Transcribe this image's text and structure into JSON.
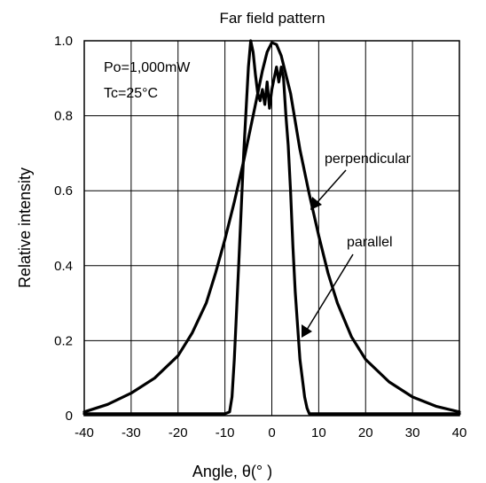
{
  "chart_data": {
    "type": "line",
    "title": "Far field pattern",
    "xlabel": "Angle, θ(°  )",
    "ylabel": "Relative intensity",
    "xlim": [
      -40,
      40
    ],
    "ylim": [
      0,
      1.0
    ],
    "xticks": [
      -40,
      -30,
      -20,
      -10,
      0,
      10,
      20,
      30,
      40
    ],
    "yticks": [
      0,
      0.2,
      0.4,
      0.6,
      0.8,
      1.0
    ],
    "ytick_labels": [
      "0",
      "0.2",
      "0.4",
      "0.6",
      "0.8",
      "1.0"
    ],
    "grid": true,
    "annotations": [
      "Po=1,000mW",
      "Tc=25°C"
    ],
    "series": [
      {
        "name": "perpendicular",
        "x": [
          -40,
          -35,
          -30,
          -25,
          -20,
          -17,
          -14,
          -12,
          -10,
          -8,
          -6,
          -4,
          -2,
          -1,
          0,
          1,
          2,
          4,
          6,
          8,
          10,
          12,
          14,
          17,
          20,
          25,
          30,
          35,
          40
        ],
        "y": [
          0.01,
          0.03,
          0.06,
          0.1,
          0.16,
          0.22,
          0.3,
          0.38,
          0.47,
          0.57,
          0.68,
          0.8,
          0.92,
          0.97,
          0.995,
          0.99,
          0.96,
          0.86,
          0.71,
          0.59,
          0.48,
          0.38,
          0.3,
          0.21,
          0.15,
          0.09,
          0.05,
          0.025,
          0.01
        ]
      },
      {
        "name": "parallel",
        "x": [
          -40,
          -20,
          -10,
          -9,
          -8.5,
          -8,
          -7,
          -6,
          -5,
          -4.5,
          -4,
          -3.5,
          -3,
          -2.5,
          -2,
          -1.5,
          -1,
          -0.5,
          0,
          0.5,
          1,
          1.5,
          2,
          2.5,
          3,
          3.5,
          4,
          4.5,
          5,
          6,
          7,
          7.5,
          8,
          10,
          20,
          40
        ],
        "y": [
          0.005,
          0.005,
          0.005,
          0.01,
          0.05,
          0.15,
          0.42,
          0.7,
          0.93,
          1.0,
          0.97,
          0.91,
          0.86,
          0.84,
          0.87,
          0.83,
          0.89,
          0.82,
          0.87,
          0.9,
          0.93,
          0.89,
          0.93,
          0.9,
          0.8,
          0.72,
          0.6,
          0.45,
          0.33,
          0.15,
          0.05,
          0.02,
          0.005,
          0.005,
          0.005,
          0.005
        ]
      }
    ],
    "series_labels": [
      "perpendicular",
      "parallel"
    ]
  }
}
